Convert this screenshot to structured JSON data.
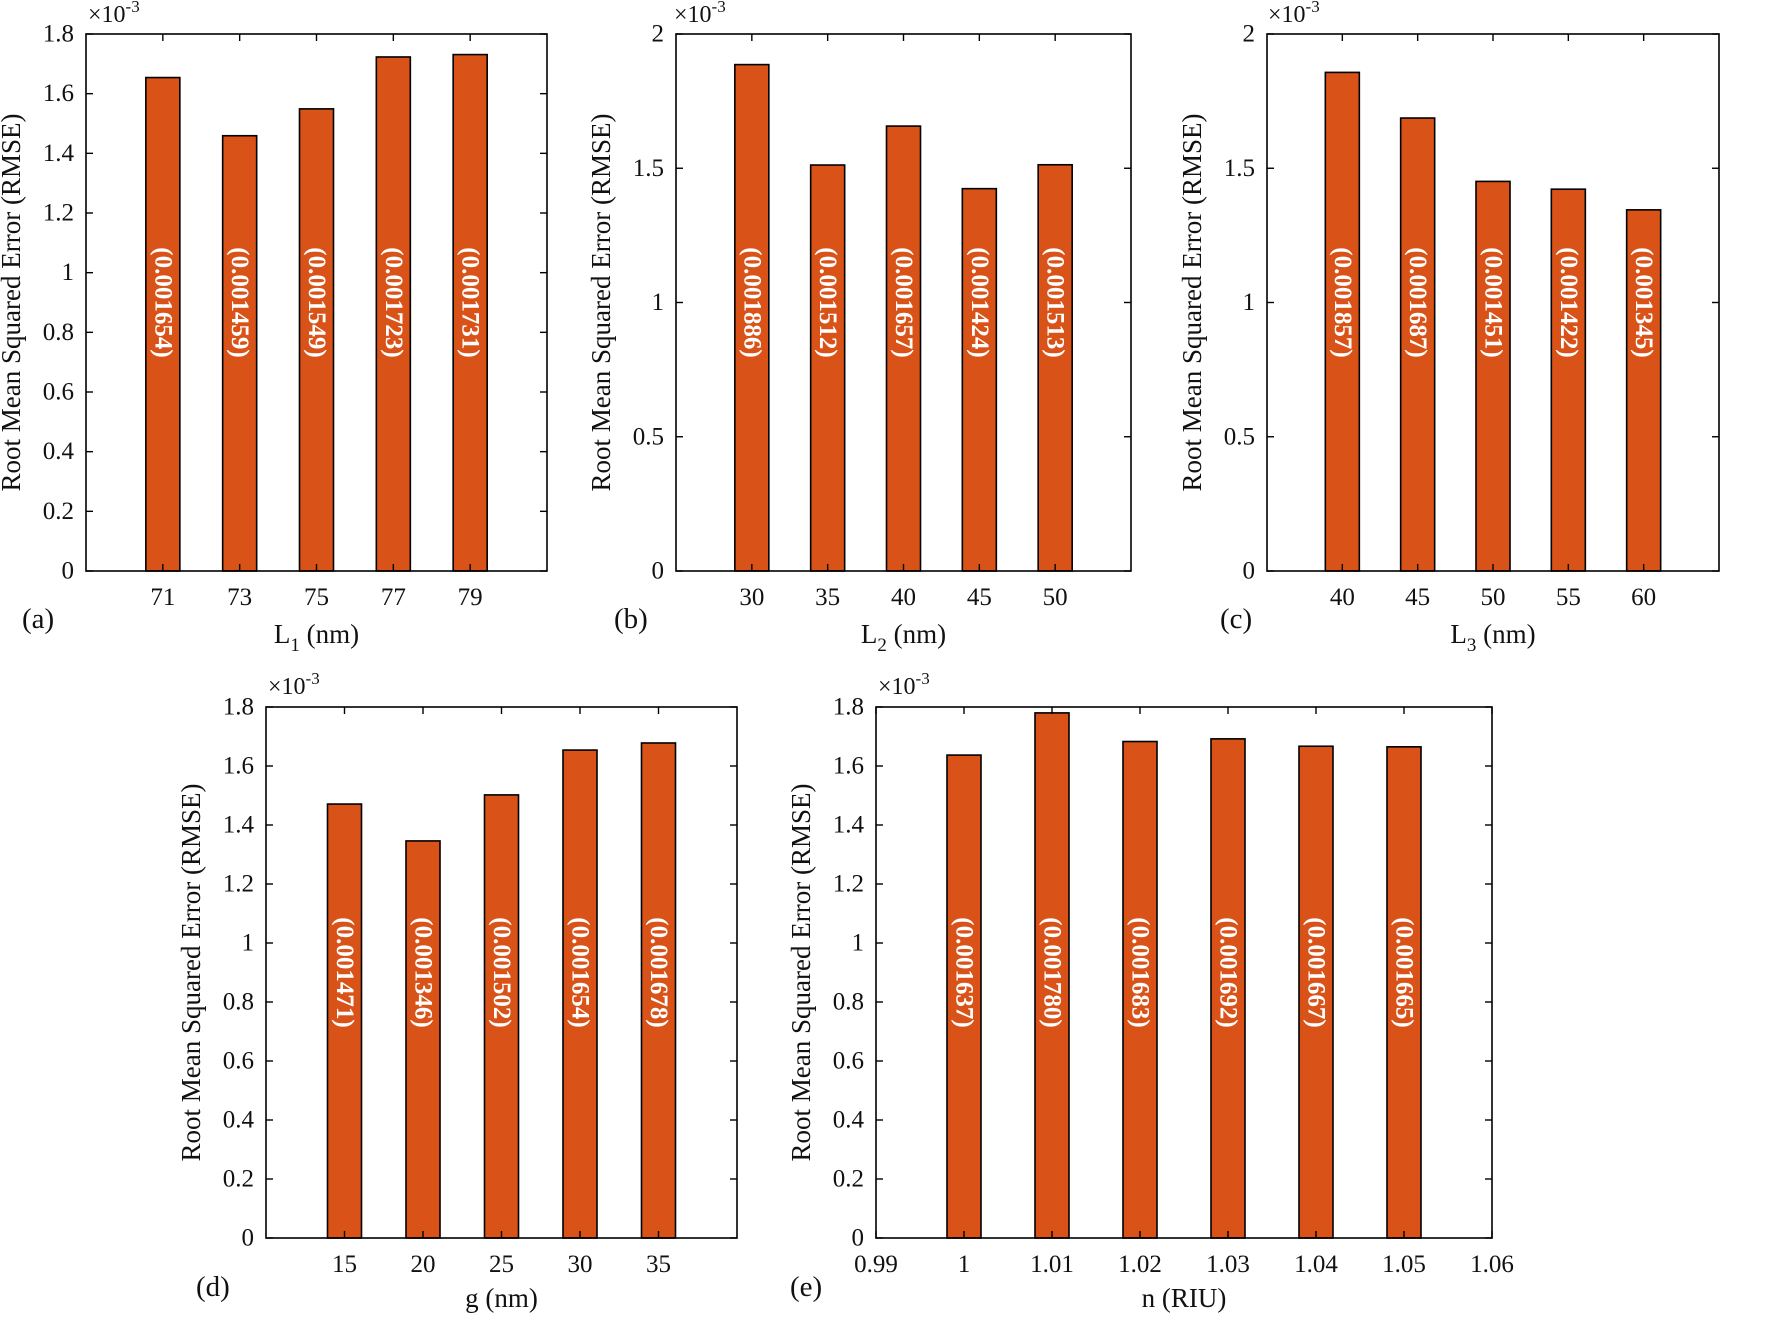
{
  "colors": {
    "bar": "#d95319",
    "bar_edge": "#000000",
    "axis": "#000000",
    "data_label": "#ffffff"
  },
  "chart_data": [
    {
      "type": "bar",
      "panel": "(a)",
      "categories": [
        "71",
        "73",
        "75",
        "77",
        "79"
      ],
      "values": [
        0.001654,
        0.001459,
        0.001549,
        0.001723,
        0.001731
      ],
      "data_labels": [
        "(0.001654)",
        "(0.001459)",
        "(0.001549)",
        "(0.001723)",
        "(0.001731)"
      ],
      "xlabel": "L",
      "xlabel_sub": "1",
      "xlabel_tail": " (nm)",
      "ylabel": "Root Mean Squared Error (RMSE)",
      "multiplier_base": "×10",
      "multiplier_exp": "-3",
      "ylim": [
        0,
        1.8
      ],
      "yticks": [
        0,
        0.2,
        0.4,
        0.6,
        0.8,
        1,
        1.2,
        1.4,
        1.6,
        1.8
      ],
      "ytick_labels": [
        "0",
        "0.2",
        "0.4",
        "0.6",
        "0.8",
        "1",
        "1.2",
        "1.4",
        "1.6",
        "1.8"
      ],
      "xlim": [
        0,
        6
      ],
      "xticks": [
        1,
        2,
        3,
        4,
        5
      ],
      "bar_pos": [
        1,
        2,
        3,
        4,
        5
      ],
      "xtick_labels": [
        "71",
        "73",
        "75",
        "77",
        "79"
      ]
    },
    {
      "type": "bar",
      "panel": "(b)",
      "categories": [
        "30",
        "35",
        "40",
        "45",
        "50"
      ],
      "values": [
        0.001886,
        0.001512,
        0.001657,
        0.001424,
        0.001513
      ],
      "data_labels": [
        "(0.001886)",
        "(0.001512)",
        "(0.001657)",
        "(0.001424)",
        "(0.001513)"
      ],
      "xlabel": "L",
      "xlabel_sub": "2",
      "xlabel_tail": " (nm)",
      "ylabel": "Root Mean Squared Error (RMSE)",
      "multiplier_base": "×10",
      "multiplier_exp": "-3",
      "ylim": [
        0,
        2
      ],
      "yticks": [
        0,
        0.5,
        1,
        1.5,
        2
      ],
      "ytick_labels": [
        "0",
        "0.5",
        "1",
        "1.5",
        "2"
      ],
      "xlim": [
        0,
        6
      ],
      "xticks": [
        1,
        2,
        3,
        4,
        5
      ],
      "bar_pos": [
        1,
        2,
        3,
        4,
        5
      ],
      "xtick_labels": [
        "30",
        "35",
        "40",
        "45",
        "50"
      ]
    },
    {
      "type": "bar",
      "panel": "(c)",
      "categories": [
        "40",
        "45",
        "50",
        "55",
        "60"
      ],
      "values": [
        0.001857,
        0.001687,
        0.001451,
        0.001422,
        0.001345
      ],
      "data_labels": [
        "(0.001857)",
        "(0.001687)",
        "(0.001451)",
        "(0.001422)",
        "(0.001345)"
      ],
      "xlabel": "L",
      "xlabel_sub": "3",
      "xlabel_tail": " (nm)",
      "ylabel": "Root Mean Squared Error (RMSE)",
      "multiplier_base": "×10",
      "multiplier_exp": "-3",
      "ylim": [
        0,
        2
      ],
      "yticks": [
        0,
        0.5,
        1,
        1.5,
        2
      ],
      "ytick_labels": [
        "0",
        "0.5",
        "1",
        "1.5",
        "2"
      ],
      "xlim": [
        0,
        6
      ],
      "xticks": [
        1,
        2,
        3,
        4,
        5
      ],
      "bar_pos": [
        1,
        2,
        3,
        4,
        5
      ],
      "xtick_labels": [
        "40",
        "45",
        "50",
        "55",
        "60"
      ]
    },
    {
      "type": "bar",
      "panel": "(d)",
      "categories": [
        "15",
        "20",
        "25",
        "30",
        "35"
      ],
      "values": [
        0.001471,
        0.001346,
        0.001502,
        0.001654,
        0.001678
      ],
      "data_labels": [
        "(0.001471)",
        "(0.001346)",
        "(0.001502)",
        "(0.001654)",
        "(0.001678)"
      ],
      "xlabel": "g (nm)",
      "xlabel_sub": "",
      "xlabel_tail": "",
      "ylabel": "Root Mean Squared Error (RMSE)",
      "multiplier_base": "×10",
      "multiplier_exp": "-3",
      "ylim": [
        0,
        1.8
      ],
      "yticks": [
        0,
        0.2,
        0.4,
        0.6,
        0.8,
        1,
        1.2,
        1.4,
        1.6,
        1.8
      ],
      "ytick_labels": [
        "0",
        "0.2",
        "0.4",
        "0.6",
        "0.8",
        "1",
        "1.2",
        "1.4",
        "1.6",
        "1.8"
      ],
      "xlim": [
        0,
        6
      ],
      "xticks": [
        1,
        2,
        3,
        4,
        5
      ],
      "bar_pos": [
        1,
        2,
        3,
        4,
        5
      ],
      "xtick_labels": [
        "15",
        "20",
        "25",
        "30",
        "35"
      ]
    },
    {
      "type": "bar",
      "panel": "(e)",
      "categories": [
        "1",
        "1.01",
        "1.02",
        "1.03",
        "1.04",
        "1.05"
      ],
      "values": [
        0.001637,
        0.00178,
        0.001683,
        0.001692,
        0.001667,
        0.001665
      ],
      "data_labels": [
        "(0.001637)",
        "(0.001780)",
        "(0.001683)",
        "(0.001692)",
        "(0.001667)",
        "(0.001665)"
      ],
      "xlabel": "n (RIU)",
      "xlabel_sub": "",
      "xlabel_tail": "",
      "ylabel": "Root Mean Squared Error (RMSE)",
      "multiplier_base": "×10",
      "multiplier_exp": "-3",
      "ylim": [
        0,
        1.8
      ],
      "yticks": [
        0,
        0.2,
        0.4,
        0.6,
        0.8,
        1,
        1.2,
        1.4,
        1.6,
        1.8
      ],
      "ytick_labels": [
        "0",
        "0.2",
        "0.4",
        "0.6",
        "0.8",
        "1",
        "1.2",
        "1.4",
        "1.6",
        "1.8"
      ],
      "xlim": [
        0.99,
        1.06
      ],
      "xticks": [
        0.99,
        1,
        1.01,
        1.02,
        1.03,
        1.04,
        1.05,
        1.06
      ],
      "bar_pos": [
        1,
        1.01,
        1.02,
        1.03,
        1.04,
        1.05
      ],
      "xtick_labels": [
        "0.99",
        "1",
        "1.01",
        "1.02",
        "1.03",
        "1.04",
        "1.05",
        "1.06"
      ]
    }
  ]
}
